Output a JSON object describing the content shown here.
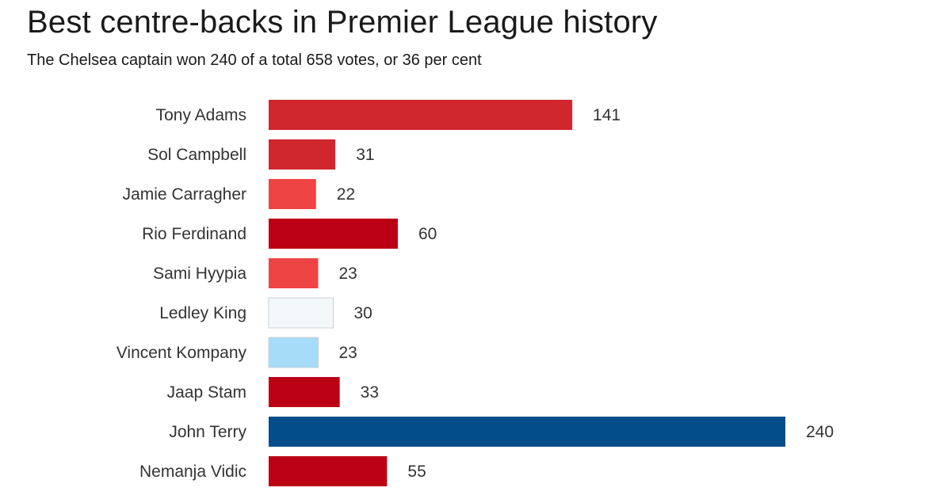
{
  "chart_data": {
    "type": "bar",
    "orientation": "horizontal",
    "title": "Best centre-backs in Premier League history",
    "subtitle": "The Chelsea captain won 240 of a total 658 votes, or 36 per cent",
    "xlabel": "",
    "ylabel": "",
    "grid": false,
    "xlim": [
      0,
      240
    ],
    "categories": [
      "Tony Adams",
      "Sol Campbell",
      "Jamie Carragher",
      "Rio Ferdinand",
      "Sami Hyypia",
      "Ledley King",
      "Vincent Kompany",
      "Jaap Stam",
      "John Terry",
      "Nemanja Vidic"
    ],
    "values": [
      141,
      31,
      22,
      60,
      23,
      30,
      23,
      33,
      240,
      55
    ],
    "value_labels": [
      "141",
      "31",
      "22",
      "60",
      "23",
      "30",
      "23",
      "33",
      "240",
      "55"
    ],
    "bar_colors": [
      "#d0262e",
      "#d0262e",
      "#ee4444",
      "#bb0016",
      "#ee4444",
      "#f3f8fa",
      "#a6dcf7",
      "#bb0016",
      "#034e8a",
      "#bb0016"
    ],
    "bar_stroke": "#c8d0d4"
  }
}
